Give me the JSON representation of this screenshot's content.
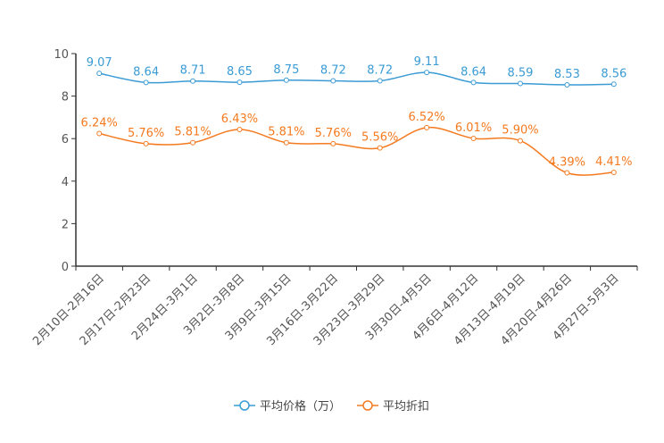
{
  "chart_data": {
    "type": "line",
    "title": "",
    "xlabel": "",
    "ylabel": "",
    "ylim": [
      0,
      10
    ],
    "yticks": [
      "0",
      "2",
      "4",
      "6",
      "8",
      "10"
    ],
    "categories": [
      "2月10日-2月16日",
      "2月17日-2月23日",
      "2月24日-3月1日",
      "3月2日-3月8日",
      "3月9日-3月15日",
      "3月16日-3月22日",
      "3月23日-3月29日",
      "3月30日-4月5日",
      "4月6日-4月12日",
      "4月13日-4月19日",
      "4月20日-4月26日",
      "4月27日-5月3日"
    ],
    "series": [
      {
        "name": "平均价格（万）",
        "color": "#3a9bd5",
        "values": [
          9.07,
          8.64,
          8.71,
          8.65,
          8.75,
          8.72,
          8.72,
          9.11,
          8.64,
          8.59,
          8.53,
          8.56
        ],
        "labels": [
          "9.07",
          "8.64",
          "8.71",
          "8.65",
          "8.75",
          "8.72",
          "8.72",
          "9.11",
          "8.64",
          "8.59",
          "8.53",
          "8.56"
        ]
      },
      {
        "name": "平均折扣",
        "color": "#f57a1f",
        "values": [
          6.24,
          5.76,
          5.81,
          6.43,
          5.81,
          5.76,
          5.56,
          6.52,
          6.01,
          5.9,
          4.39,
          4.41
        ],
        "labels": [
          "6.24%",
          "5.76%",
          "5.81%",
          "6.43%",
          "5.81%",
          "5.76%",
          "5.56%",
          "6.52%",
          "6.01%",
          "5.90%",
          "4.39%",
          "4.41%"
        ]
      }
    ],
    "legend": "bottom-center",
    "grid": false
  }
}
